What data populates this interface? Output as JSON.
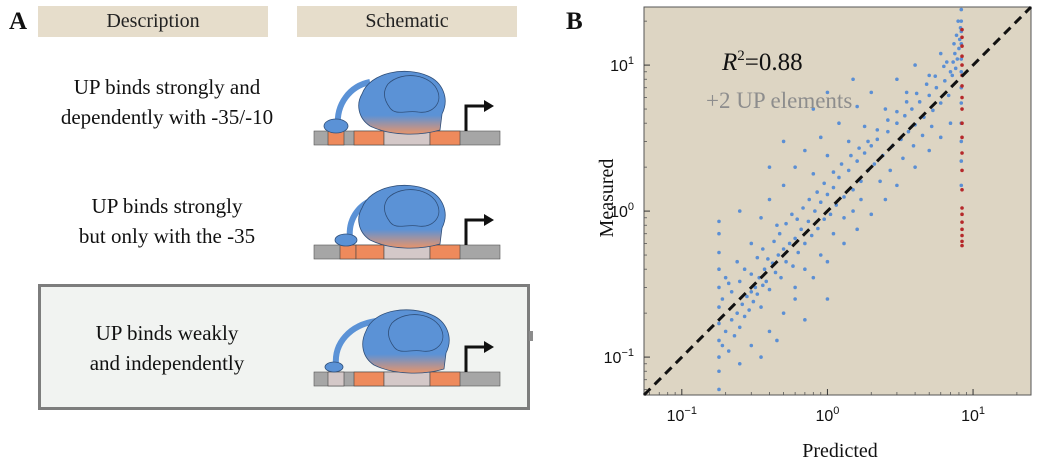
{
  "panel_a": {
    "letter": "A",
    "headers": {
      "description": "Description",
      "schematic": "Schematic"
    },
    "rows": [
      {
        "line1": "UP binds strongly and",
        "line2": "dependently with -35/-10"
      },
      {
        "line1": "UP binds strongly",
        "line2": "but only with the -35"
      },
      {
        "line1": "UP binds weakly",
        "line2": "and independently"
      }
    ],
    "colors": {
      "rnap": "#5b92d6",
      "element": "#ee8a5c",
      "spacer": "#d4c8c8",
      "dna": "#a6a6a6"
    }
  },
  "panel_b": {
    "letter": "B",
    "annotation": {
      "r2_label": "R",
      "r2_sup": "2",
      "r2_value": "=0.88",
      "subtitle": "+2 UP elements"
    }
  },
  "chart_data": {
    "type": "scatter",
    "title": "",
    "xlabel": "Predicted",
    "ylabel": "Measured",
    "xscale": "log",
    "yscale": "log",
    "xlim": [
      0.055,
      25
    ],
    "ylim": [
      0.055,
      25
    ],
    "xticks": [
      {
        "value": 0.1,
        "base": "10",
        "exp": "−1"
      },
      {
        "value": 1,
        "base": "10",
        "exp": "0"
      },
      {
        "value": 10,
        "base": "10",
        "exp": "1"
      }
    ],
    "yticks": [
      {
        "value": 0.1,
        "base": "10",
        "exp": "−1"
      },
      {
        "value": 1,
        "base": "10",
        "exp": "0"
      },
      {
        "value": 10,
        "base": "10",
        "exp": "1"
      }
    ],
    "background": "#ddd5c3",
    "series": [
      {
        "color": "#5b8fd4",
        "points": [
          [
            0.18,
            0.06
          ],
          [
            0.18,
            0.08
          ],
          [
            0.18,
            0.1
          ],
          [
            0.18,
            0.13
          ],
          [
            0.18,
            0.17
          ],
          [
            0.18,
            0.22
          ],
          [
            0.18,
            0.3
          ],
          [
            0.18,
            0.4
          ],
          [
            0.18,
            0.52
          ],
          [
            0.18,
            0.7
          ],
          [
            0.18,
            0.85
          ],
          [
            0.19,
            0.12
          ],
          [
            0.2,
            0.15
          ],
          [
            0.21,
            0.11
          ],
          [
            0.22,
            0.18
          ],
          [
            0.23,
            0.14
          ],
          [
            0.24,
            0.2
          ],
          [
            0.25,
            0.16
          ],
          [
            0.26,
            0.23
          ],
          [
            0.27,
            0.19
          ],
          [
            0.28,
            0.26
          ],
          [
            0.29,
            0.21
          ],
          [
            0.3,
            0.28
          ],
          [
            0.31,
            0.24
          ],
          [
            0.32,
            0.3
          ],
          [
            0.33,
            0.27
          ],
          [
            0.34,
            0.35
          ],
          [
            0.35,
            0.22
          ],
          [
            0.36,
            0.31
          ],
          [
            0.37,
            0.4
          ],
          [
            0.38,
            0.33
          ],
          [
            0.4,
            0.29
          ],
          [
            0.42,
            0.44
          ],
          [
            0.44,
            0.38
          ],
          [
            0.46,
            0.5
          ],
          [
            0.48,
            0.35
          ],
          [
            0.5,
            0.55
          ],
          [
            0.52,
            0.45
          ],
          [
            0.55,
            0.6
          ],
          [
            0.58,
            0.42
          ],
          [
            0.6,
            0.65
          ],
          [
            0.63,
            0.52
          ],
          [
            0.66,
            0.75
          ],
          [
            0.7,
            0.6
          ],
          [
            0.74,
            0.85
          ],
          [
            0.78,
            0.68
          ],
          [
            0.82,
            1.0
          ],
          [
            0.86,
            0.76
          ],
          [
            0.9,
            1.15
          ],
          [
            0.95,
            0.88
          ],
          [
            1.0,
            1.3
          ],
          [
            1.05,
            0.95
          ],
          [
            1.1,
            1.45
          ],
          [
            1.15,
            1.1
          ],
          [
            1.2,
            1.7
          ],
          [
            1.3,
            1.25
          ],
          [
            1.4,
            1.9
          ],
          [
            1.5,
            1.4
          ],
          [
            1.6,
            2.2
          ],
          [
            1.7,
            1.6
          ],
          [
            1.8,
            2.5
          ],
          [
            1.9,
            1.9
          ],
          [
            2.0,
            2.8
          ],
          [
            2.1,
            2.1
          ],
          [
            2.2,
            3.1
          ],
          [
            2.4,
            2.4
          ],
          [
            2.6,
            3.5
          ],
          [
            2.8,
            2.8
          ],
          [
            3.0,
            4.0
          ],
          [
            3.2,
            3.1
          ],
          [
            3.4,
            4.5
          ],
          [
            3.6,
            3.5
          ],
          [
            3.8,
            5.0
          ],
          [
            4.0,
            3.9
          ],
          [
            4.3,
            5.6
          ],
          [
            4.6,
            4.4
          ],
          [
            5.0,
            6.2
          ],
          [
            5.3,
            4.9
          ],
          [
            5.6,
            7.0
          ],
          [
            6.0,
            5.5
          ],
          [
            6.4,
            7.8
          ],
          [
            6.8,
            6.2
          ],
          [
            7.2,
            8.5
          ],
          [
            7.6,
            9.5
          ],
          [
            7.8,
            11.0
          ],
          [
            8.0,
            13.0
          ],
          [
            8.1,
            15.0
          ],
          [
            8.2,
            18.0
          ],
          [
            0.21,
            0.32
          ],
          [
            0.24,
            0.45
          ],
          [
            0.3,
            0.6
          ],
          [
            0.35,
            0.9
          ],
          [
            0.4,
            1.2
          ],
          [
            0.45,
            0.8
          ],
          [
            0.5,
            1.5
          ],
          [
            0.6,
            2.0
          ],
          [
            0.7,
            2.6
          ],
          [
            0.8,
            1.8
          ],
          [
            0.9,
            3.2
          ],
          [
            1.0,
            2.4
          ],
          [
            1.2,
            4.0
          ],
          [
            1.4,
            3.0
          ],
          [
            1.6,
            5.2
          ],
          [
            1.8,
            3.8
          ],
          [
            2.0,
            6.5
          ],
          [
            2.5,
            5.0
          ],
          [
            3.0,
            8.0
          ],
          [
            3.5,
            6.5
          ],
          [
            4.0,
            10.0
          ],
          [
            5.0,
            8.5
          ],
          [
            6.0,
            12.0
          ],
          [
            0.3,
            0.12
          ],
          [
            0.4,
            0.15
          ],
          [
            0.5,
            0.2
          ],
          [
            0.6,
            0.25
          ],
          [
            0.8,
            0.35
          ],
          [
            1.0,
            0.45
          ],
          [
            1.3,
            0.6
          ],
          [
            1.6,
            0.75
          ],
          [
            2.0,
            0.95
          ],
          [
            2.5,
            1.2
          ],
          [
            3.0,
            1.5
          ],
          [
            4.0,
            2.0
          ],
          [
            5.0,
            2.6
          ],
          [
            6.0,
            3.2
          ],
          [
            7.0,
            4.0
          ],
          [
            0.19,
            0.25
          ],
          [
            0.2,
            0.35
          ],
          [
            0.22,
            0.28
          ],
          [
            0.25,
            0.33
          ],
          [
            0.27,
            0.4
          ],
          [
            0.3,
            0.37
          ],
          [
            0.33,
            0.48
          ],
          [
            0.36,
            0.55
          ],
          [
            0.39,
            0.47
          ],
          [
            0.43,
            0.62
          ],
          [
            0.47,
            0.7
          ],
          [
            0.52,
            0.82
          ],
          [
            0.57,
            0.95
          ],
          [
            0.62,
            0.88
          ],
          [
            0.68,
            1.05
          ],
          [
            0.75,
            1.2
          ],
          [
            0.85,
            1.35
          ],
          [
            0.95,
            1.55
          ],
          [
            1.1,
            1.85
          ],
          [
            1.25,
            2.1
          ],
          [
            1.45,
            2.4
          ],
          [
            1.65,
            2.7
          ],
          [
            1.9,
            3.0
          ],
          [
            2.2,
            3.6
          ],
          [
            2.6,
            4.2
          ],
          [
            3.0,
            4.8
          ],
          [
            3.5,
            5.6
          ],
          [
            4.1,
            6.4
          ],
          [
            4.8,
            7.4
          ],
          [
            5.5,
            8.4
          ],
          [
            6.3,
            9.8
          ],
          [
            0.6,
            0.3
          ],
          [
            0.7,
            0.4
          ],
          [
            0.9,
            0.5
          ],
          [
            1.1,
            0.7
          ],
          [
            1.3,
            0.9
          ],
          [
            1.5,
            1.0
          ],
          [
            1.7,
            1.2
          ],
          [
            2.3,
            1.6
          ],
          [
            2.7,
            1.9
          ],
          [
            3.3,
            2.3
          ],
          [
            3.9,
            2.8
          ],
          [
            4.5,
            3.3
          ],
          [
            5.2,
            3.8
          ],
          [
            0.25,
            0.09
          ],
          [
            0.35,
            0.1
          ],
          [
            0.45,
            0.13
          ],
          [
            0.7,
            0.18
          ],
          [
            1.0,
            0.25
          ],
          [
            0.25,
            1.0
          ],
          [
            0.4,
            2.0
          ],
          [
            0.5,
            3.0
          ],
          [
            0.8,
            5.0
          ],
          [
            1.0,
            6.5
          ],
          [
            1.5,
            8.0
          ],
          [
            8.3,
            1.5
          ],
          [
            8.3,
            2.2
          ],
          [
            8.3,
            3.0
          ],
          [
            8.3,
            4.0
          ],
          [
            8.3,
            5.5
          ],
          [
            8.3,
            7.0
          ],
          [
            8.3,
            9.0
          ],
          [
            8.3,
            11.0
          ],
          [
            8.3,
            14.0
          ],
          [
            8.3,
            17.0
          ],
          [
            8.3,
            20.0
          ],
          [
            8.3,
            24.0
          ],
          [
            7.5,
            12.0
          ],
          [
            7.7,
            16.0
          ],
          [
            7.9,
            20.0
          ],
          [
            7.3,
            10.5
          ],
          [
            7.0,
            9.0
          ],
          [
            6.6,
            10.5
          ],
          [
            7.4,
            14.0
          ]
        ]
      },
      {
        "color": "#b5282a",
        "points": [
          [
            8.4,
            0.58
          ],
          [
            8.4,
            0.62
          ],
          [
            8.4,
            0.68
          ],
          [
            8.4,
            0.75
          ],
          [
            8.4,
            0.84
          ],
          [
            8.4,
            0.95
          ],
          [
            8.4,
            1.05
          ],
          [
            8.4,
            1.4
          ],
          [
            8.4,
            1.9
          ],
          [
            8.4,
            2.5
          ],
          [
            8.4,
            3.2
          ],
          [
            8.4,
            4.0
          ],
          [
            8.4,
            5.0
          ],
          [
            8.4,
            6.0
          ],
          [
            8.4,
            7.2
          ],
          [
            8.4,
            8.5
          ],
          [
            8.4,
            10.0
          ],
          [
            8.4,
            11.5
          ],
          [
            8.4,
            13.5
          ],
          [
            8.4,
            15.5
          ],
          [
            8.4,
            17.5
          ]
        ]
      }
    ],
    "reference_line": {
      "style": "dashed",
      "color": "#111111",
      "slope": 1,
      "intercept": 0
    }
  }
}
